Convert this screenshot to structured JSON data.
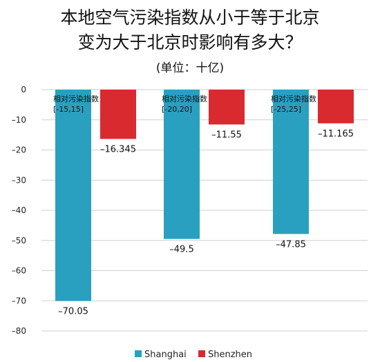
{
  "title_lines": [
    "本地空气污染指数从小于等于北京",
    "变为大于北京时影响有多大？"
  ],
  "unit_label": "(单位：十亿)",
  "chart_data": {
    "type": "bar",
    "categories": [
      "相对污染指数[-15,15]",
      "相对污染指数[-20,20]",
      "相对污染指数[-25,25]"
    ],
    "category_annotations": [
      [
        "相对污染指数",
        "[-15,15]"
      ],
      [
        "相对污染指数",
        "[-20,20]"
      ],
      [
        "相对污染指数",
        "[-25,25]"
      ]
    ],
    "series": [
      {
        "name": "Shanghai",
        "color": "#2aa0c0",
        "values": [
          -70.05,
          -49.5,
          -47.85
        ],
        "labels": [
          "-70.05",
          "-49.5",
          "-47.85"
        ]
      },
      {
        "name": "Shenzhen",
        "color": "#d92a2f",
        "values": [
          -16.345,
          -11.55,
          -11.165
        ],
        "labels": [
          "-16.345",
          "-11.55",
          "-11.165"
        ]
      }
    ],
    "ylim": [
      -80,
      0
    ],
    "yticks": [
      0,
      -10,
      -20,
      -30,
      -40,
      -50,
      -60,
      -70,
      -80
    ],
    "grid": true,
    "legend_position": "bottom"
  }
}
